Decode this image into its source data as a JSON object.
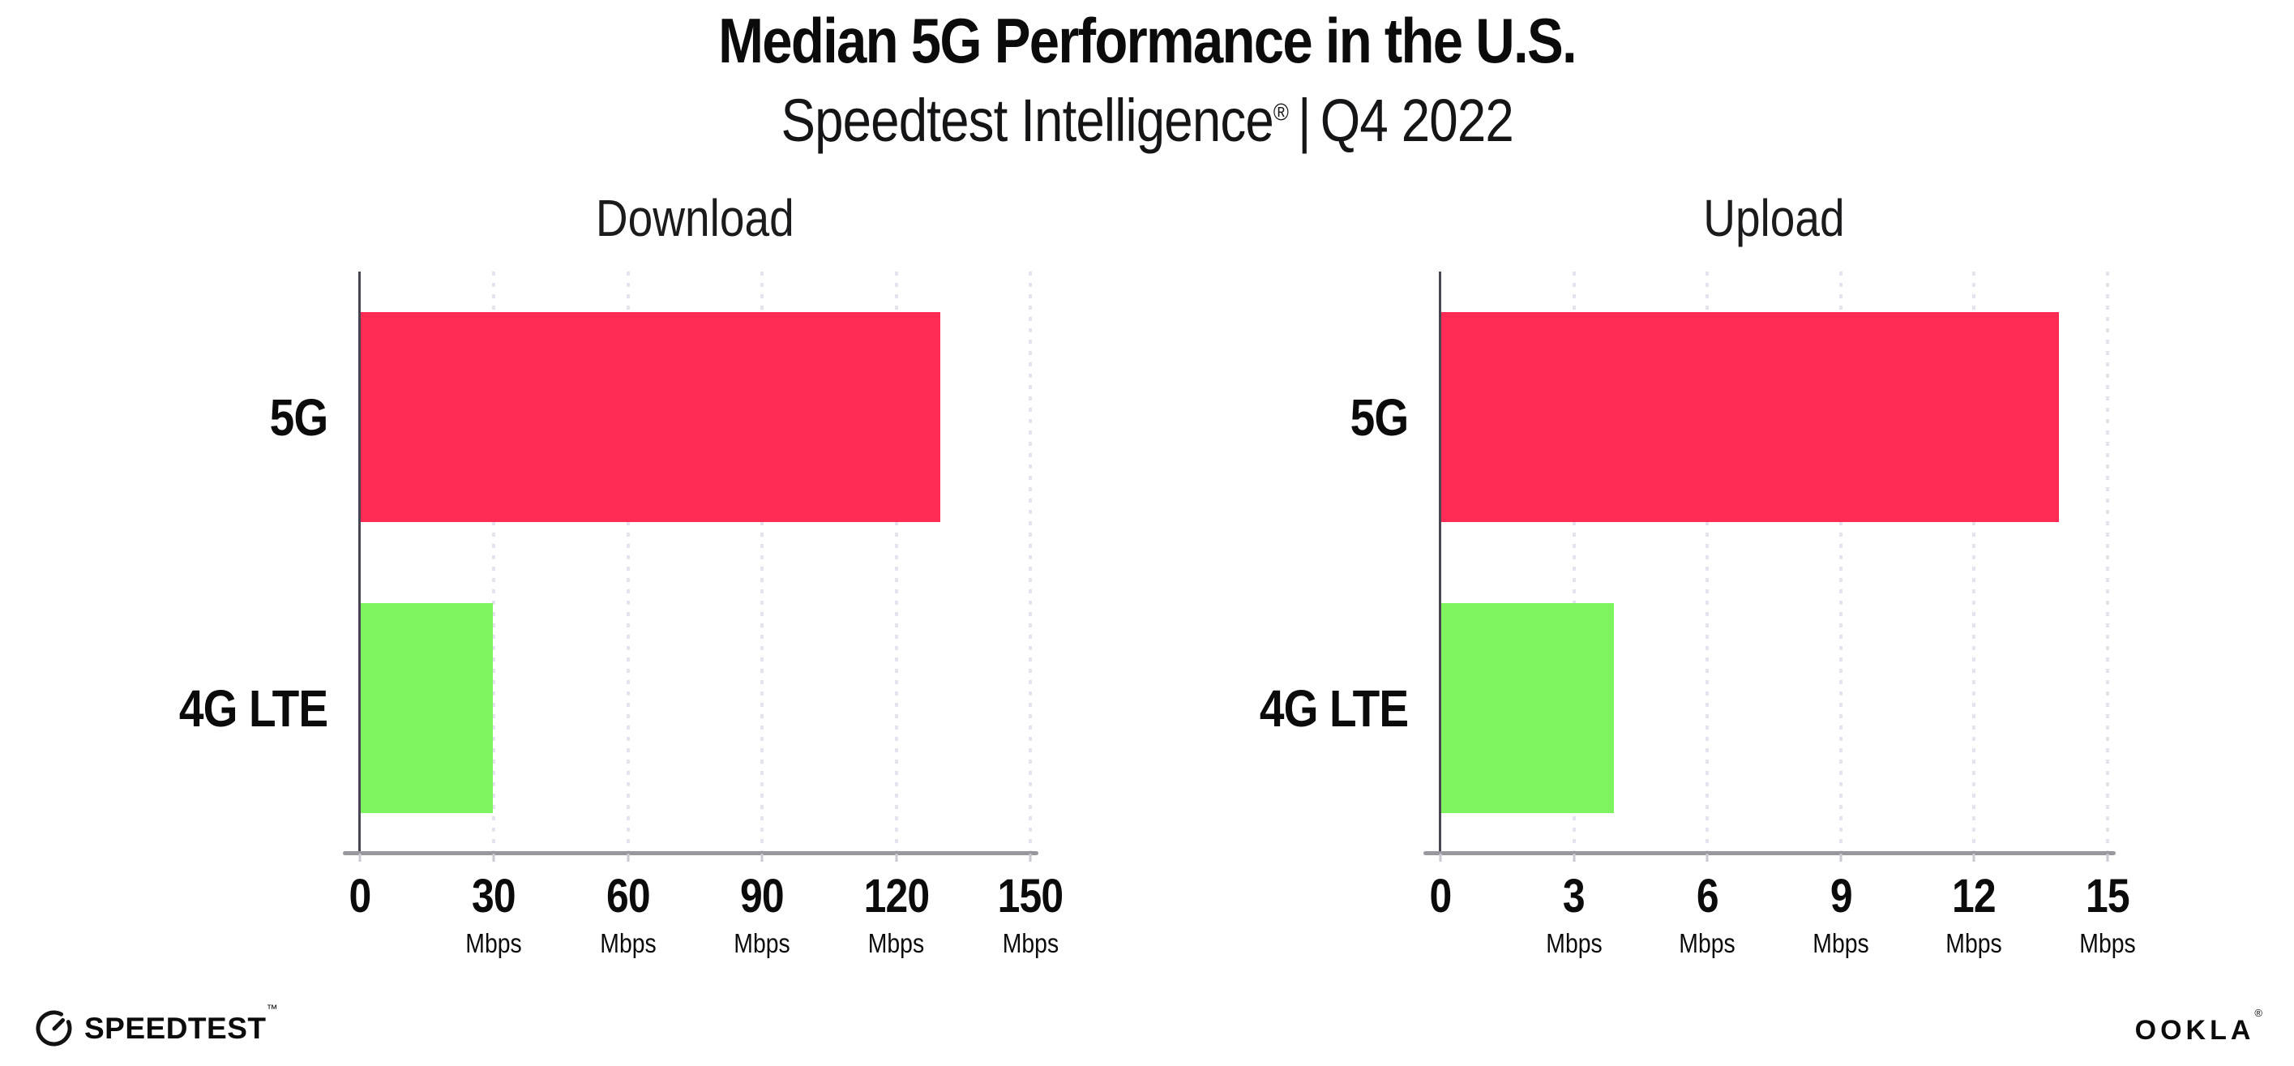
{
  "header": {
    "title": "Median 5G Performance in the U.S.",
    "subtitle_brand": "Speedtest Intelligence",
    "subtitle_reg": "®",
    "subtitle_sep": "|",
    "subtitle_period": "Q4 2022"
  },
  "chart_data": [
    {
      "type": "bar",
      "orientation": "horizontal",
      "title": "Download",
      "categories": [
        "5G",
        "4G LTE"
      ],
      "values": [
        129.8,
        29.8
      ],
      "unit": "Mbps",
      "xlim": [
        0,
        150
      ],
      "ticks": [
        0,
        30,
        60,
        90,
        120,
        150
      ],
      "bar_colors": [
        "#ff2b54",
        "#7ef45e"
      ],
      "grid": "dotted-vertical",
      "legend": "none"
    },
    {
      "type": "bar",
      "orientation": "horizontal",
      "title": "Upload",
      "categories": [
        "5G",
        "4G LTE"
      ],
      "values": [
        13.9,
        3.9
      ],
      "unit": "Mbps",
      "xlim": [
        0,
        15
      ],
      "ticks": [
        0,
        3,
        6,
        9,
        12,
        15
      ],
      "bar_colors": [
        "#ff2b54",
        "#7ef45e"
      ],
      "grid": "dotted-vertical",
      "legend": "none"
    }
  ],
  "footer": {
    "speedtest_label": "SPEEDTEST",
    "speedtest_tm": "™",
    "ookla_label": "OOKLA",
    "ookla_reg": "®"
  },
  "colors": {
    "bar_5g": "#ff2b54",
    "bar_4g_lte": "#7ef45e",
    "y_axis": "#4a4552",
    "x_axis": "#97979e",
    "gridline": "#e4e3ee",
    "text": "#0b0b0c",
    "background": "#ffffff"
  }
}
